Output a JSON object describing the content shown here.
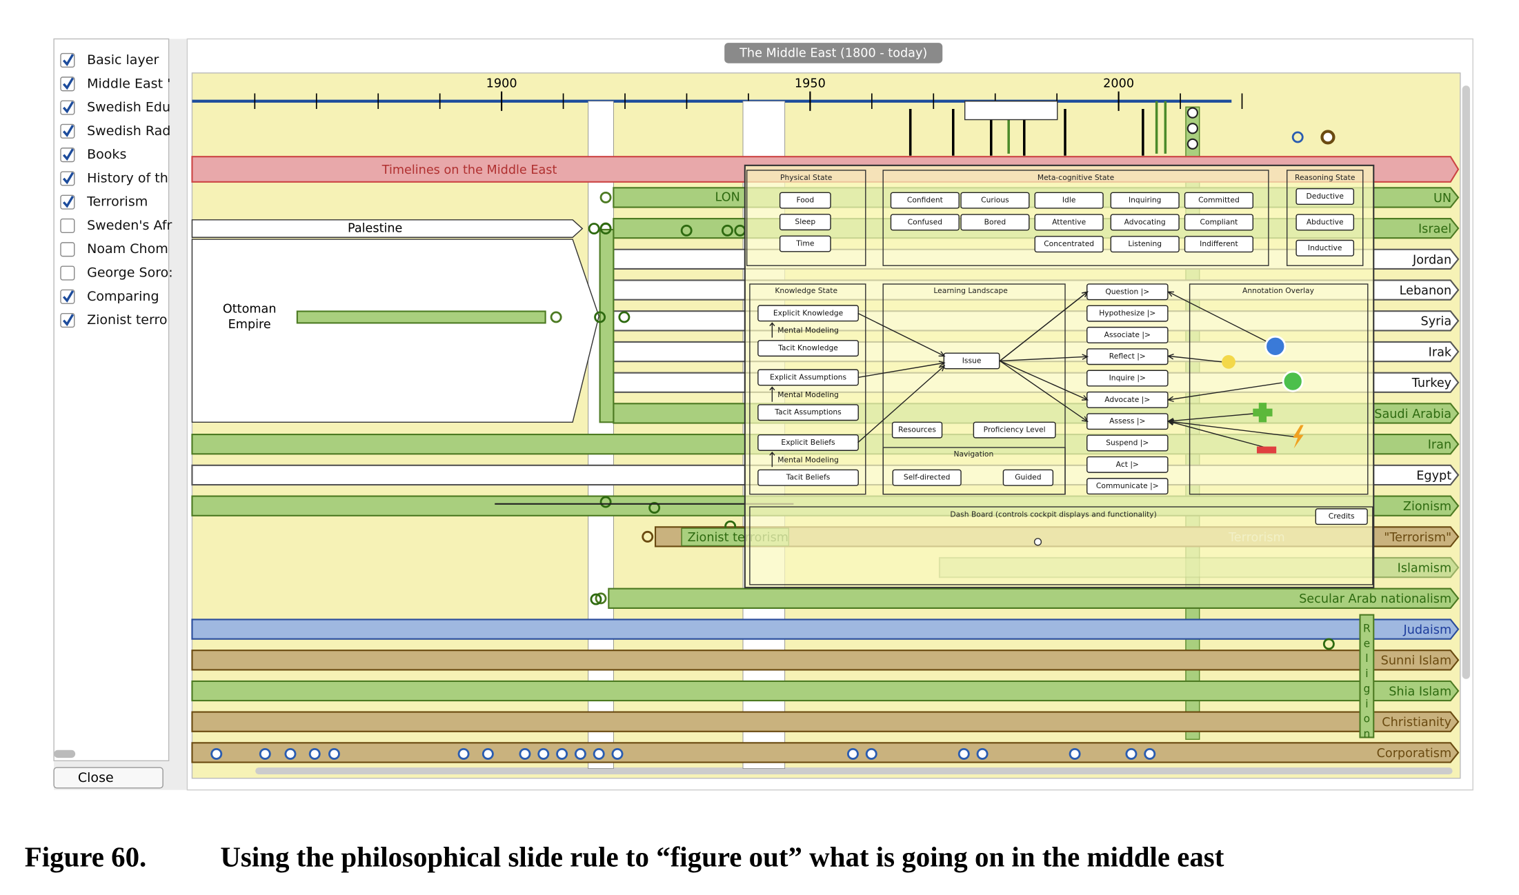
{
  "window": {
    "title": "The Middle East (1800 - today)",
    "close": "Close"
  },
  "layers": [
    {
      "label": "Basic layer",
      "checked": true
    },
    {
      "label": "Middle East '",
      "checked": true
    },
    {
      "label": "Swedish Edu",
      "checked": true
    },
    {
      "label": "Swedish Rad",
      "checked": true
    },
    {
      "label": "Books",
      "checked": true
    },
    {
      "label": "History of th",
      "checked": true
    },
    {
      "label": "Terrorism",
      "checked": true
    },
    {
      "label": "Sweden's Afr",
      "checked": false
    },
    {
      "label": "Noam Chom",
      "checked": false
    },
    {
      "label": "George Soro:",
      "checked": false
    },
    {
      "label": "Comparing",
      "checked": true
    },
    {
      "label": "Zionist terro",
      "checked": true
    }
  ],
  "timeline": {
    "years": [
      1900,
      1950,
      2000
    ],
    "banner": "Timelines on the Middle East",
    "rows": [
      {
        "name": "UN",
        "color": "green"
      },
      {
        "name": "Israel",
        "color": "green"
      },
      {
        "name": "Jordan",
        "color": "white"
      },
      {
        "name": "Lebanon",
        "color": "white"
      },
      {
        "name": "Syria",
        "color": "white"
      },
      {
        "name": "Irak",
        "color": "white"
      },
      {
        "name": "Turkey",
        "color": "white"
      },
      {
        "name": "Saudi Arabia",
        "color": "green"
      },
      {
        "name": "Iran",
        "color": "green"
      },
      {
        "name": "Egypt",
        "color": "white"
      },
      {
        "name": "Zionism",
        "color": "green"
      },
      {
        "name": "\"Terrorism\"",
        "color": "tan"
      },
      {
        "name": "Islamism",
        "color": "green"
      },
      {
        "name": "Secular Arab nationalism",
        "color": "green"
      },
      {
        "name": "Judaism",
        "color": "blue"
      },
      {
        "name": "Sunni Islam",
        "color": "tan"
      },
      {
        "name": "Shia Islam",
        "color": "green"
      },
      {
        "name": "Christianity",
        "color": "tan"
      },
      {
        "name": "Corporatism",
        "color": "tan"
      }
    ],
    "palestine": "Palestine",
    "ottoman": [
      "Ottoman",
      "Empire"
    ],
    "lon": "LON",
    "zionist_terrorism": "Zionist terrorism",
    "terrorism": "Terrorism",
    "religion": "Religion"
  },
  "overlay": {
    "physical": {
      "title": "Physical State",
      "items": [
        "Food",
        "Sleep",
        "Time"
      ]
    },
    "metacognitive": {
      "title": "Meta-cognitive State",
      "items": [
        "Confident",
        "Curious",
        "Idle",
        "Inquiring",
        "Committed",
        "Confused",
        "Bored",
        "Attentive",
        "Advocating",
        "Compliant",
        "Concentrated",
        "Listening",
        "Indifferent"
      ]
    },
    "reasoning": {
      "title": "Reasoning State",
      "items": [
        "Deductive",
        "Abductive",
        "Inductive"
      ]
    },
    "knowledge": {
      "title": "Knowledge State",
      "items": [
        "Explicit Knowledge",
        "Mental Modeling",
        "Tacit Knowledge",
        "Explicit Assumptions",
        "Mental Modeling",
        "Tacit Assumptions",
        "Explicit Beliefs",
        "Mental Modeling",
        "Tacit Beliefs"
      ]
    },
    "landscape": {
      "title": "Learning Landscape",
      "issue": "Issue",
      "resources": "Resources",
      "proficiency": "Proficiency Level",
      "navigation": "Navigation",
      "self_directed": "Self-directed",
      "guided": "Guided"
    },
    "actions": [
      "Question |>",
      "Hypothesize |>",
      "Associate |>",
      "Reflect |>",
      "Inquire |>",
      "Advocate |>",
      "Assess |>",
      "Suspend |>",
      "Act |>",
      "Communicate |>"
    ],
    "annotation": {
      "title": "Annotation Overlay"
    },
    "dashboard": {
      "title": "Dash Board (controls cockpit displays and functionality)",
      "credits": "Credits"
    }
  },
  "caption": {
    "label": "Figure 60.",
    "text": "Using the philosophical slide rule to “figure out” what is going on in the middle east"
  }
}
